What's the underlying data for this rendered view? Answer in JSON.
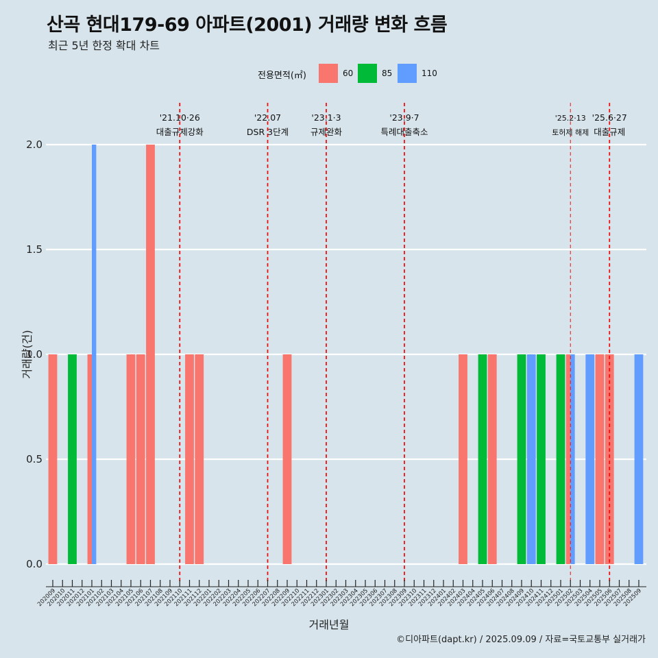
{
  "title": "산곡 현대179-69 아파트(2001) 거래량 변화 흐름",
  "subtitle": "최근 5년 한정 확대 차트",
  "caption": "©디아파트(dapt.kr) / 2025.09.09 / 자료=국토교통부 실거래가",
  "legend": {
    "title": "전용면적(㎡)",
    "items": [
      {
        "label": "60",
        "color": "#f8766d"
      },
      {
        "label": "85",
        "color": "#00ba38"
      },
      {
        "label": "110",
        "color": "#619cff"
      }
    ]
  },
  "chart_data": {
    "type": "bar",
    "xlabel": "거래년월",
    "ylabel": "거래량(건)",
    "ylim": [
      0,
      2.0
    ],
    "yticks": [
      "0.0",
      "0.5",
      "1.0",
      "1.5",
      "2.0"
    ],
    "categories": [
      "202009",
      "202010",
      "202011",
      "202012",
      "202101",
      "202102",
      "202103",
      "202104",
      "202105",
      "202106",
      "202107",
      "202108",
      "202109",
      "202110",
      "202111",
      "202112",
      "202201",
      "202202",
      "202203",
      "202204",
      "202205",
      "202206",
      "202207",
      "202208",
      "202209",
      "202210",
      "202211",
      "202212",
      "202301",
      "202302",
      "202303",
      "202304",
      "202305",
      "202306",
      "202307",
      "202308",
      "202309",
      "202310",
      "202311",
      "202312",
      "202401",
      "202402",
      "202403",
      "202404",
      "202405",
      "202406",
      "202407",
      "202408",
      "202409",
      "202410",
      "202411",
      "202412",
      "202501",
      "202502",
      "202503",
      "202504",
      "202505",
      "202506",
      "202507",
      "202508",
      "202509"
    ],
    "bars": [
      {
        "month": "202009",
        "series": "60",
        "value": 1
      },
      {
        "month": "202011",
        "series": "85",
        "value": 1
      },
      {
        "month": "202101",
        "series": "60",
        "value": 1
      },
      {
        "month": "202101",
        "series": "110",
        "value": 2
      },
      {
        "month": "202105",
        "series": "60",
        "value": 1
      },
      {
        "month": "202106",
        "series": "60",
        "value": 1
      },
      {
        "month": "202107",
        "series": "60",
        "value": 2
      },
      {
        "month": "202111",
        "series": "60",
        "value": 1
      },
      {
        "month": "202112",
        "series": "60",
        "value": 1
      },
      {
        "month": "202209",
        "series": "60",
        "value": 1
      },
      {
        "month": "202403",
        "series": "60",
        "value": 1
      },
      {
        "month": "202405",
        "series": "85",
        "value": 1
      },
      {
        "month": "202406",
        "series": "60",
        "value": 1
      },
      {
        "month": "202409",
        "series": "85",
        "value": 1
      },
      {
        "month": "202410",
        "series": "110",
        "value": 1
      },
      {
        "month": "202411",
        "series": "85",
        "value": 1
      },
      {
        "month": "202501",
        "series": "85",
        "value": 1
      },
      {
        "month": "202502",
        "series": "60",
        "value": 1
      },
      {
        "month": "202502",
        "series": "110",
        "value": 1
      },
      {
        "month": "202504",
        "series": "110",
        "value": 1
      },
      {
        "month": "202505",
        "series": "60",
        "value": 1
      },
      {
        "month": "202506",
        "series": "60",
        "value": 1
      },
      {
        "month": "202509",
        "series": "110",
        "value": 1
      }
    ],
    "events": [
      {
        "month": "202110",
        "date": "'21.10·26",
        "label": "대출규제강화",
        "thin": false
      },
      {
        "month": "202207",
        "date": "'22.07",
        "label": "DSR 3단계",
        "thin": false
      },
      {
        "month": "202301",
        "date": "'23.1·3",
        "label": "규제완화",
        "thin": false
      },
      {
        "month": "202309",
        "date": "'23.9·7",
        "label": "특례대출축소",
        "thin": false
      },
      {
        "month": "202502",
        "date": "'25.2·13",
        "label": "토허제 해제",
        "thin": true
      },
      {
        "month": "202506",
        "date": "'25.6·27",
        "label": "대출규제",
        "thin": false
      }
    ]
  }
}
